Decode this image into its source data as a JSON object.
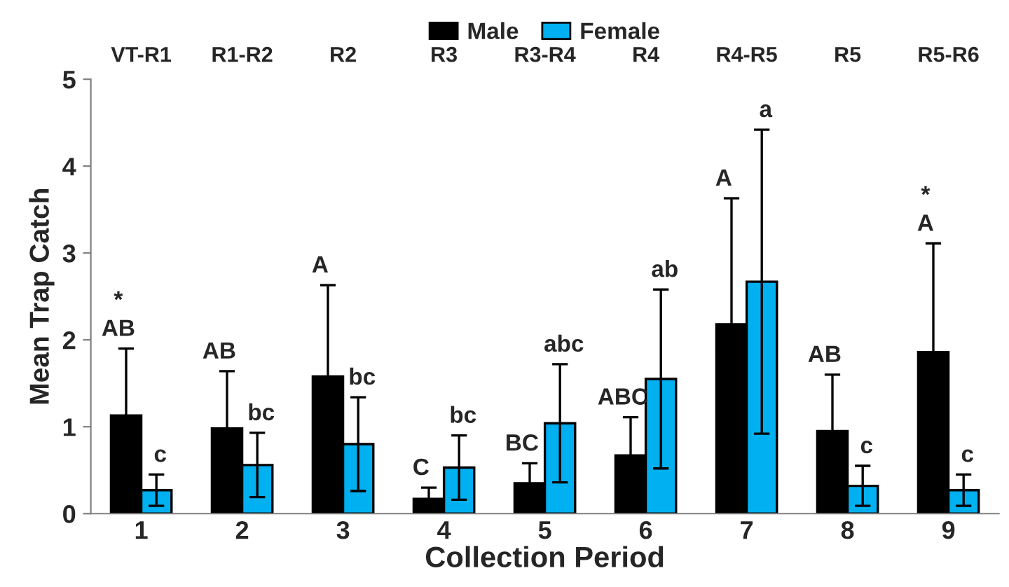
{
  "chart_data": {
    "type": "bar",
    "xlabel": "Collection Period",
    "ylabel": "Mean Trap Catch",
    "categories": [
      "1",
      "2",
      "3",
      "4",
      "5",
      "6",
      "7",
      "8",
      "9"
    ],
    "series": [
      {
        "name": "Male",
        "color": "#000000",
        "values": [
          1.13,
          0.98,
          1.58,
          0.17,
          0.35,
          0.67,
          2.18,
          0.95,
          1.86
        ],
        "errors": [
          0.77,
          0.66,
          1.05,
          0.13,
          0.23,
          0.44,
          1.45,
          0.65,
          1.25
        ]
      },
      {
        "name": "Female",
        "color": "#00b0f0",
        "values": [
          0.27,
          0.56,
          0.8,
          0.53,
          1.04,
          1.55,
          2.67,
          0.32,
          0.27
        ],
        "errors": [
          0.18,
          0.37,
          0.54,
          0.37,
          0.68,
          1.03,
          1.75,
          0.23,
          0.18
        ]
      }
    ],
    "ylim": [
      0,
      5
    ],
    "yticks": [
      0,
      1,
      2,
      3,
      4,
      5
    ],
    "grid": false,
    "legend": "top",
    "annotations": [
      "VT-R1",
      "R1-R2",
      "R2",
      "R3",
      "R3-R4",
      "R4",
      "R4-R5",
      "R5",
      "R5-R6",
      "*\nAB",
      "c",
      "AB",
      "bc",
      "A",
      "bc",
      "C",
      "bc",
      "BC",
      "abc",
      "ABC",
      "ab",
      "A",
      "a",
      "AB",
      "c",
      "*\nA",
      "c"
    ]
  }
}
